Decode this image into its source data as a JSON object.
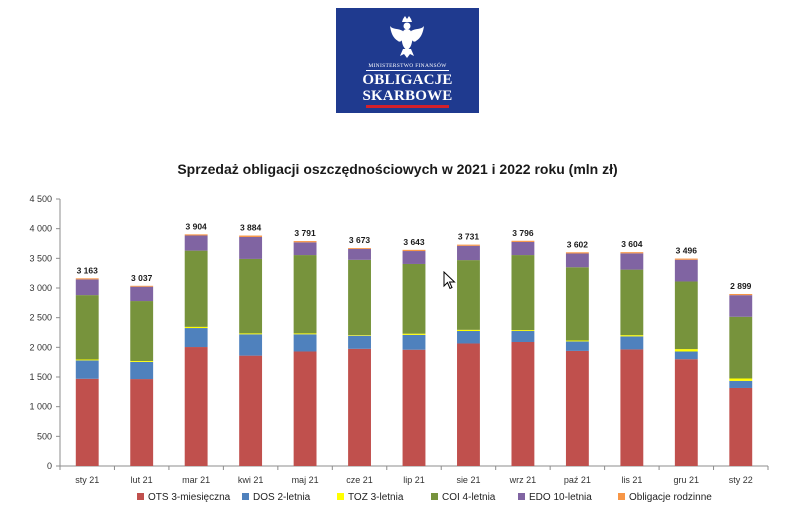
{
  "logo": {
    "ministry": "MINISTERSTWO FINANSÓW",
    "line1": "OBLIGACJE",
    "line2": "SKARBOWE",
    "background": "#1f3a8f",
    "accent": "#d4202b"
  },
  "chart_data": {
    "type": "bar",
    "stacked": true,
    "title": "Sprzedaż obligacji oszczędnościowych w 2021 i 2022 roku (mln zł)",
    "xlabel": "",
    "ylabel": "",
    "ylim": [
      0,
      4500
    ],
    "yticks": [
      0,
      500,
      1000,
      1500,
      2000,
      2500,
      3000,
      3500,
      4000,
      4500
    ],
    "ytick_labels": [
      "0",
      "500",
      "1 000",
      "1 500",
      "2 000",
      "2 500",
      "3 000",
      "3 500",
      "4 000",
      "4 500"
    ],
    "grid": false,
    "legend_position": "bottom",
    "categories": [
      "sty 21",
      "lut 21",
      "mar 21",
      "kwi 21",
      "maj 21",
      "cze 21",
      "lip 21",
      "sie 21",
      "wrz 21",
      "paź 21",
      "lis 21",
      "gru 21",
      "sty 22"
    ],
    "series": [
      {
        "name": "OTS 3-miesięczna",
        "color": "#c0504d",
        "values": [
          1470,
          1465,
          2005,
          1860,
          1930,
          1975,
          1960,
          2065,
          2090,
          1940,
          1965,
          1800,
          1315
        ]
      },
      {
        "name": "DOS 2-letnia",
        "color": "#4f81bd",
        "values": [
          310,
          290,
          320,
          360,
          290,
          220,
          250,
          210,
          185,
          160,
          220,
          130,
          120
        ]
      },
      {
        "name": "TOZ 3-letnia",
        "color": "#ffff00",
        "values": [
          15,
          15,
          20,
          15,
          15,
          10,
          20,
          20,
          15,
          15,
          20,
          40,
          40
        ]
      },
      {
        "name": "COI 4-letnia",
        "color": "#77933c",
        "values": [
          1085,
          1010,
          1285,
          1255,
          1320,
          1270,
          1175,
          1175,
          1265,
          1235,
          1105,
          1140,
          1040
        ]
      },
      {
        "name": "EDO 10-letnia",
        "color": "#8064a2",
        "values": [
          265,
          242,
          255,
          370,
          215,
          183,
          218,
          241,
          221,
          232,
          274,
          366,
          364
        ]
      },
      {
        "name": "Obligacje rodzinne",
        "color": "#f79646",
        "values": [
          18,
          15,
          19,
          24,
          21,
          15,
          20,
          20,
          20,
          20,
          20,
          20,
          20
        ]
      }
    ],
    "totals": [
      3163,
      3037,
      3904,
      3884,
      3791,
      3673,
      3643,
      3731,
      3796,
      3602,
      3604,
      3496,
      2899
    ],
    "total_labels": [
      "3 163",
      "3 037",
      "3 904",
      "3 884",
      "3 791",
      "3 673",
      "3 643",
      "3 731",
      "3 796",
      "3 602",
      "3 604",
      "3 496",
      "2 899"
    ]
  }
}
